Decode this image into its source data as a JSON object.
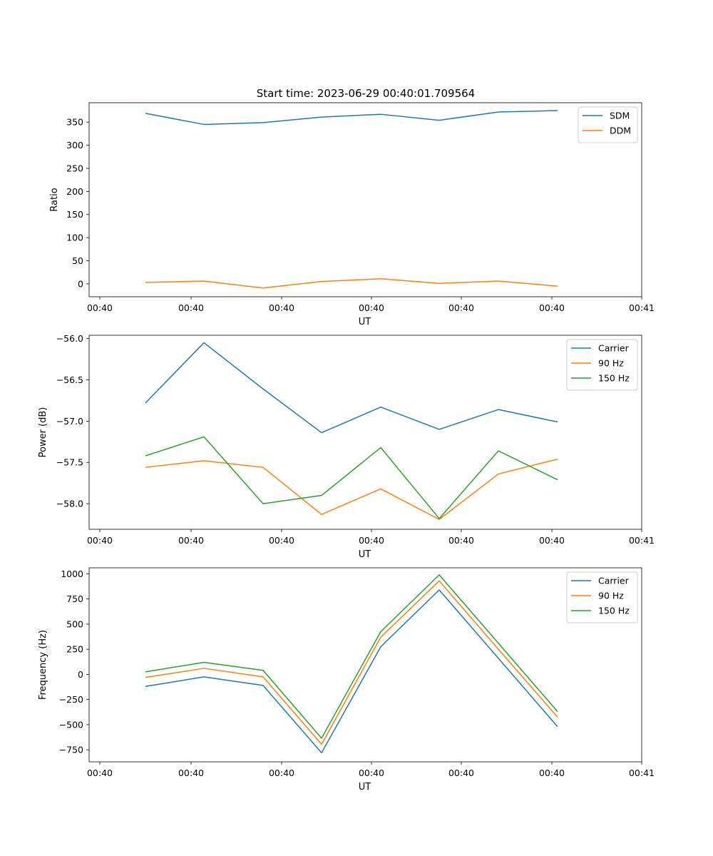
{
  "figure": {
    "title": "Start time: 2023-06-29 00:40:01.709564"
  },
  "colors": {
    "blue": "#1f77b4",
    "orange": "#ff7f0e",
    "green": "#2ca02c"
  },
  "chart_data": [
    {
      "type": "line",
      "title": "Start time: 2023-06-29 00:40:01.709564",
      "xlabel": "UT",
      "ylabel": "Ratio",
      "x_tick_labels": [
        "00:40",
        "00:40",
        "00:40",
        "00:40",
        "00:40",
        "00:40",
        "00:41"
      ],
      "y_ticks": [
        0,
        50,
        100,
        150,
        200,
        250,
        300,
        350
      ],
      "ylim": [
        -28,
        392
      ],
      "grid": false,
      "legend_position": "top-right",
      "series": [
        {
          "name": "SDM",
          "color": "#1f77b4",
          "values": [
            369,
            345,
            349,
            361,
            367,
            354,
            372,
            375
          ]
        },
        {
          "name": "DDM",
          "color": "#ff7f0e",
          "values": [
            3,
            6,
            -9,
            5,
            11,
            1,
            6,
            -5
          ]
        }
      ]
    },
    {
      "type": "line",
      "title": "",
      "xlabel": "UT",
      "ylabel": "Power (dB)",
      "x_tick_labels": [
        "00:40",
        "00:40",
        "00:40",
        "00:40",
        "00:40",
        "00:40",
        "00:41"
      ],
      "y_ticks": [
        -58.0,
        -57.5,
        -57.0,
        -56.5,
        -56.0
      ],
      "ylim": [
        -58.31,
        -55.96
      ],
      "grid": false,
      "legend_position": "top-right",
      "series": [
        {
          "name": "Carrier",
          "color": "#1f77b4",
          "values": [
            -56.78,
            -56.05,
            -56.61,
            -57.14,
            -56.83,
            -57.1,
            -56.86,
            -57.01
          ]
        },
        {
          "name": "90 Hz",
          "color": "#ff7f0e",
          "values": [
            -57.56,
            -57.48,
            -57.56,
            -58.13,
            -57.82,
            -58.19,
            -57.64,
            -57.46
          ]
        },
        {
          "name": "150 Hz",
          "color": "#2ca02c",
          "values": [
            -57.42,
            -57.19,
            -58.0,
            -57.9,
            -57.32,
            -58.18,
            -57.36,
            -57.71
          ]
        }
      ]
    },
    {
      "type": "line",
      "title": "",
      "xlabel": "UT",
      "ylabel": "Frequency (Hz)",
      "x_tick_labels": [
        "00:40",
        "00:40",
        "00:40",
        "00:40",
        "00:40",
        "00:40",
        "00:41"
      ],
      "y_ticks": [
        -750,
        -500,
        -250,
        0,
        250,
        500,
        750,
        1000
      ],
      "ylim": [
        -870,
        1060
      ],
      "grid": false,
      "legend_position": "top-right",
      "series": [
        {
          "name": "Carrier",
          "color": "#1f77b4",
          "values": [
            -120,
            -25,
            -110,
            -780,
            275,
            840,
            160,
            -520
          ]
        },
        {
          "name": "90 Hz",
          "color": "#ff7f0e",
          "values": [
            -30,
            60,
            -25,
            -695,
            370,
            930,
            250,
            -425
          ]
        },
        {
          "name": "150 Hz",
          "color": "#2ca02c",
          "values": [
            25,
            120,
            40,
            -635,
            425,
            990,
            310,
            -370
          ]
        }
      ]
    }
  ]
}
